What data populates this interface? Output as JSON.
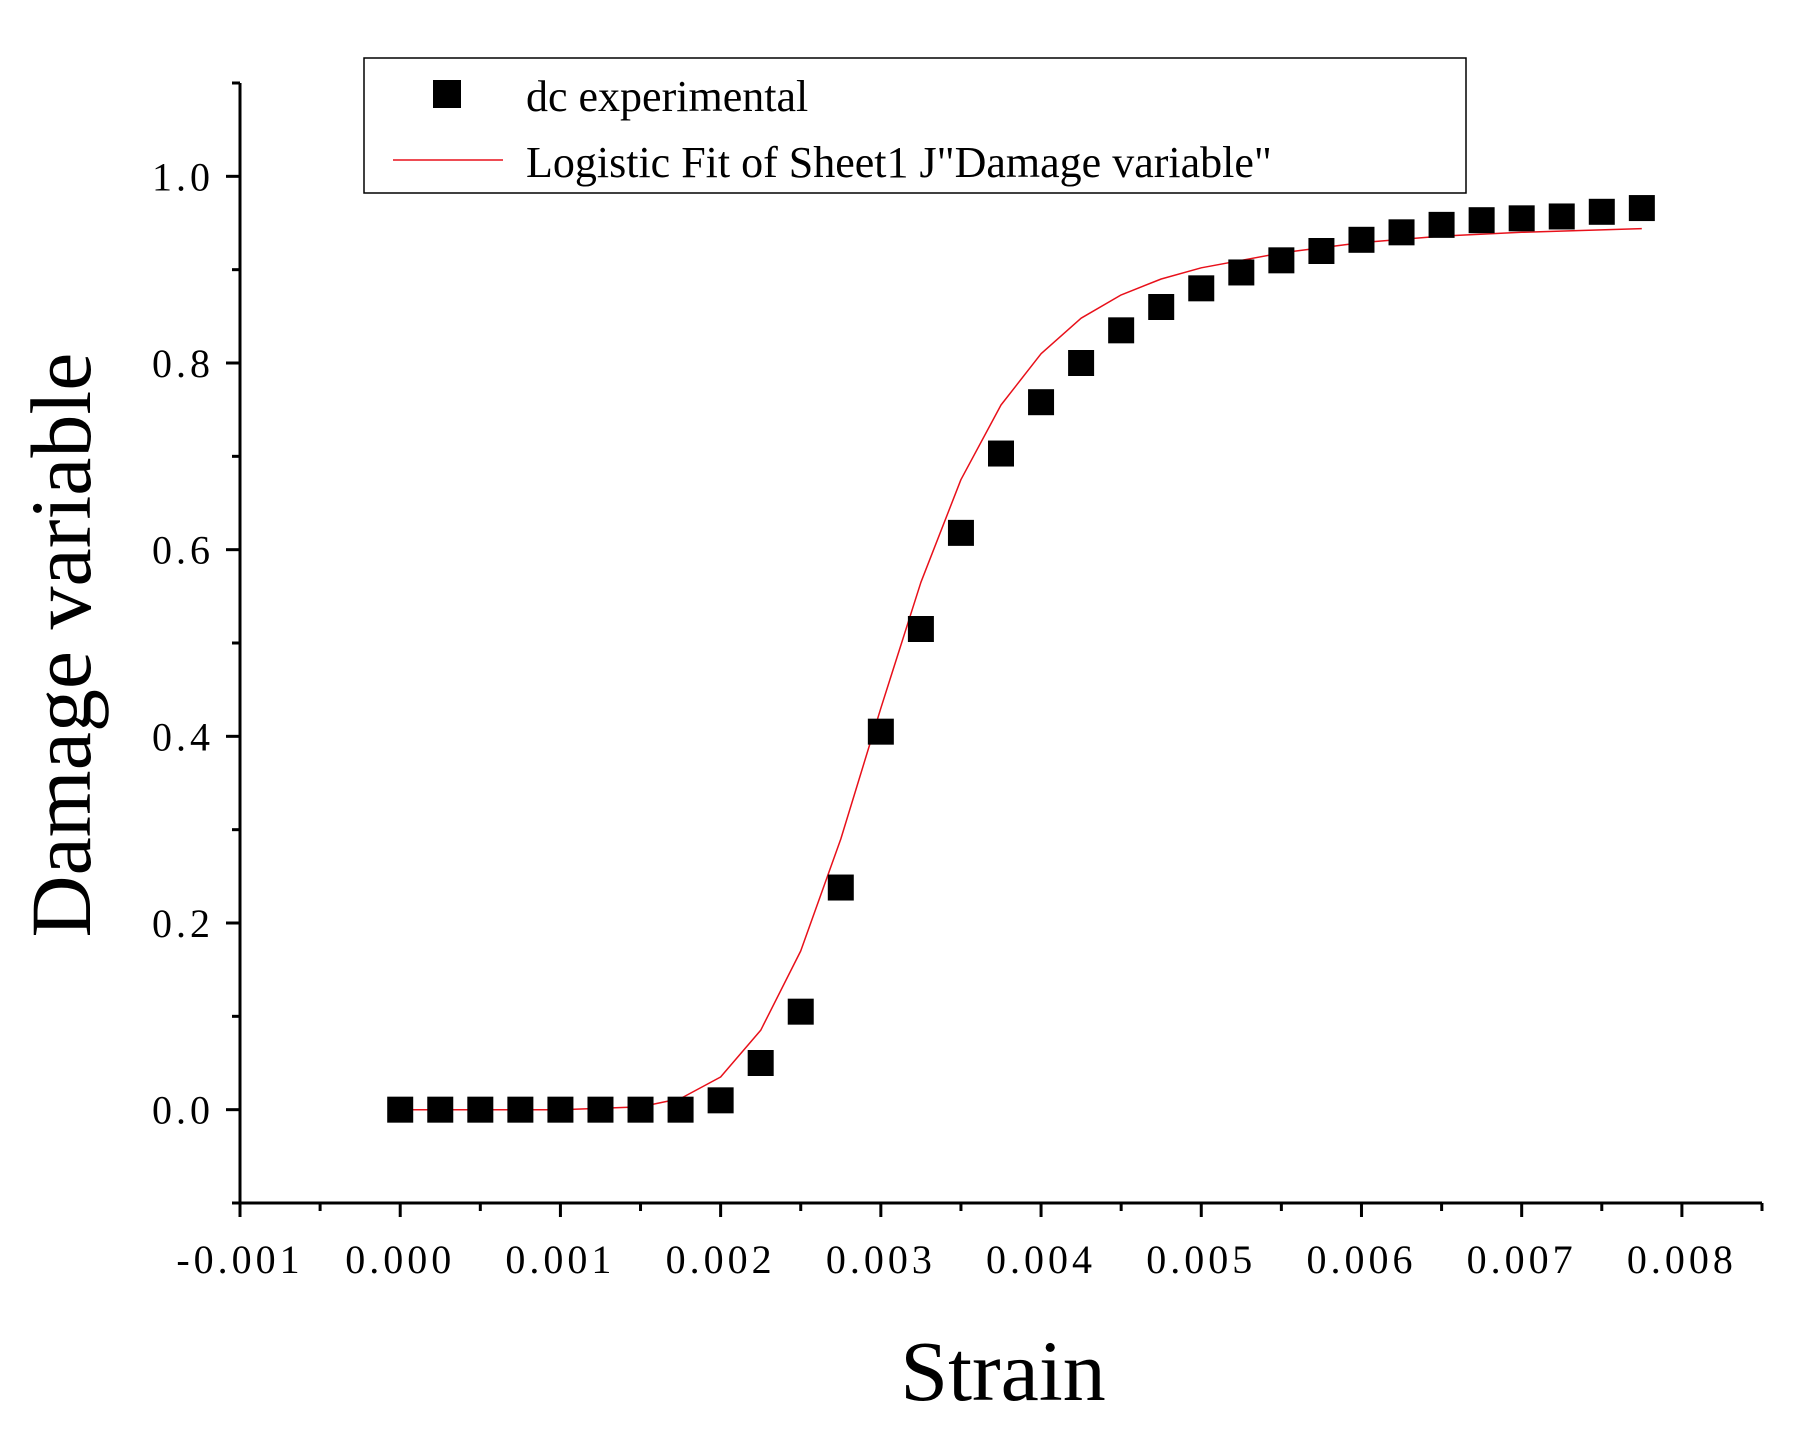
{
  "chart_data": {
    "type": "scatter",
    "title": "",
    "xlabel": "Strain",
    "ylabel": "Damage variable",
    "xlim": [
      -0.001,
      0.0085
    ],
    "ylim": [
      -0.1,
      1.1
    ],
    "x_ticks": [
      -0.001,
      0.0,
      0.001,
      0.002,
      0.003,
      0.004,
      0.005,
      0.006,
      0.007,
      0.008
    ],
    "x_tick_labels": [
      "-0.001",
      "0.000",
      "0.001",
      "0.002",
      "0.003",
      "0.004",
      "0.005",
      "0.006",
      "0.007",
      "0.008"
    ],
    "y_ticks": [
      0.0,
      0.2,
      0.4,
      0.6,
      0.8,
      1.0
    ],
    "y_tick_labels": [
      "0.0",
      "0.2",
      "0.4",
      "0.6",
      "0.8",
      "1.0"
    ],
    "grid": false,
    "legend_position": "top",
    "series": [
      {
        "name": "dc experimental",
        "kind": "scatter",
        "marker": "square",
        "color": "#000000",
        "x": [
          0.0,
          0.00025,
          0.0005,
          0.00075,
          0.001,
          0.00125,
          0.0015,
          0.00175,
          0.002,
          0.00225,
          0.0025,
          0.00275,
          0.003,
          0.00325,
          0.0035,
          0.00375,
          0.004,
          0.00425,
          0.0045,
          0.00475,
          0.005,
          0.00525,
          0.0055,
          0.00575,
          0.006,
          0.00625,
          0.0065,
          0.00675,
          0.007,
          0.00725,
          0.0075,
          0.00775
        ],
        "y": [
          0.0,
          0.0,
          0.0,
          0.0,
          0.0,
          0.0,
          0.0,
          0.0,
          0.01,
          0.05,
          0.105,
          0.238,
          0.405,
          0.515,
          0.618,
          0.703,
          0.758,
          0.8,
          0.835,
          0.86,
          0.88,
          0.897,
          0.91,
          0.92,
          0.932,
          0.94,
          0.948,
          0.953,
          0.955,
          0.957,
          0.962,
          0.966
        ]
      },
      {
        "name": "Logistic Fit of Sheet1 J\"Damage variable\"",
        "kind": "line",
        "color": "#e8101a",
        "x": [
          0.0,
          0.0005,
          0.001,
          0.0015,
          0.00175,
          0.002,
          0.00225,
          0.0025,
          0.00275,
          0.003,
          0.00325,
          0.0035,
          0.00375,
          0.004,
          0.00425,
          0.0045,
          0.00475,
          0.005,
          0.0055,
          0.006,
          0.0065,
          0.007,
          0.00775
        ],
        "y": [
          0.0,
          0.0,
          0.0,
          0.003,
          0.012,
          0.035,
          0.085,
          0.17,
          0.29,
          0.43,
          0.565,
          0.675,
          0.755,
          0.81,
          0.848,
          0.873,
          0.89,
          0.902,
          0.918,
          0.929,
          0.936,
          0.94,
          0.944
        ]
      }
    ]
  }
}
